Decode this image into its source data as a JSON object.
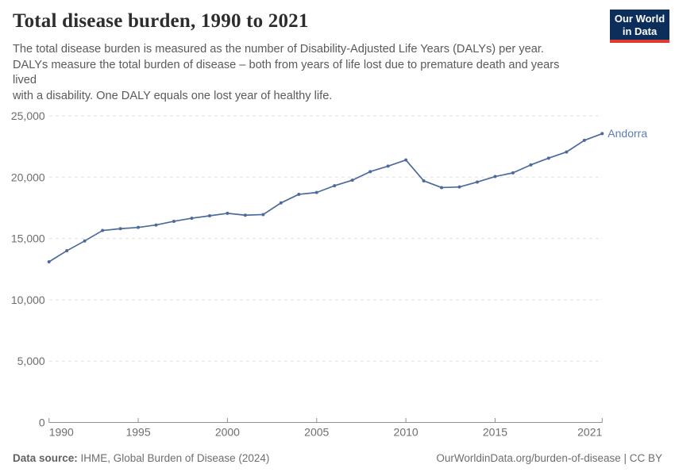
{
  "header": {
    "title": "Total disease burden, 1990 to 2021",
    "subtitle": "The total disease burden is measured as the number of Disability-Adjusted Life Years (DALYs) per year.\nDALYs measure the total burden of disease – both from years of life lost due to premature death and years\nlived\nwith a disability. One DALY equals one lost year of healthy life.",
    "logo": {
      "line1": "Our World",
      "line2": "in Data"
    }
  },
  "footer": {
    "source_label": "Data source:",
    "source_text": " IHME, Global Burden of Disease (2024)",
    "credit": "OurWorldinData.org/burden-of-disease | CC BY"
  },
  "colors": {
    "line": "#4c6a9c",
    "end_label": "#5b7cb8",
    "grid": "#e0e0e0",
    "axis": "#8f8f8f",
    "tick_text": "#6e6e6e",
    "logo_bg": "#0d2e5b",
    "logo_bar": "#dc3c31"
  },
  "chart_data": {
    "type": "line",
    "title": "Total disease burden, 1990 to 2021",
    "end_label": "Andorra",
    "xlim": [
      1990,
      2021
    ],
    "ylim": [
      0,
      25000
    ],
    "x_ticks": [
      1990,
      1995,
      2000,
      2005,
      2010,
      2015,
      2021
    ],
    "y_ticks": [
      0,
      5000,
      10000,
      15000,
      20000,
      25000
    ],
    "y_tick_labels": [
      "0",
      "5,000",
      "10,000",
      "15,000",
      "20,000",
      "25,000"
    ],
    "grid": "horizontal-dashed",
    "legend_position": "end-of-line",
    "series": [
      {
        "name": "Andorra",
        "color": "#4c6a9c",
        "x": [
          1990,
          1991,
          1992,
          1993,
          1994,
          1995,
          1996,
          1997,
          1998,
          1999,
          2000,
          2001,
          2002,
          2003,
          2004,
          2005,
          2006,
          2007,
          2008,
          2009,
          2010,
          2011,
          2012,
          2013,
          2014,
          2015,
          2016,
          2017,
          2018,
          2019,
          2020,
          2021
        ],
        "values": [
          13100,
          14000,
          14800,
          15650,
          15800,
          15900,
          16100,
          16400,
          16650,
          16850,
          17050,
          16900,
          16950,
          17900,
          18600,
          18750,
          19300,
          19750,
          20450,
          20900,
          21400,
          19700,
          19150,
          19200,
          19600,
          20050,
          20350,
          21000,
          21550,
          22050,
          23000,
          23550
        ]
      }
    ]
  }
}
